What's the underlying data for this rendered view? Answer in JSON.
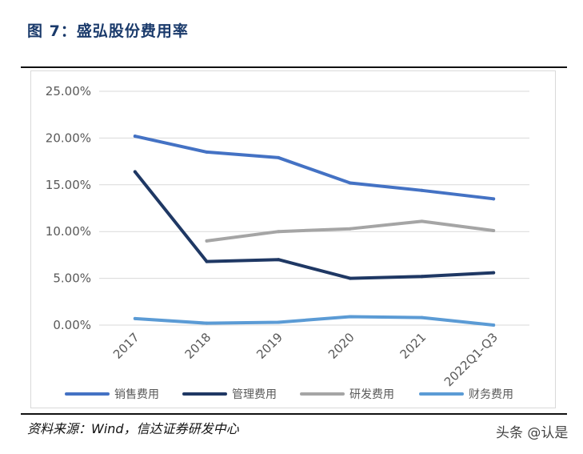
{
  "figure": {
    "title": "图 7：盛弘股份费用率",
    "source": "资料来源：Wind，信达证券研发中心",
    "watermark": "头条 @认是"
  },
  "chart_data": {
    "type": "line",
    "title": "",
    "xlabel": "",
    "ylabel": "",
    "categories": [
      "2017",
      "2018",
      "2019",
      "2020",
      "2021",
      "2022Q1-Q3"
    ],
    "ylim": [
      0,
      25
    ],
    "yticks": [
      0,
      5,
      10,
      15,
      20,
      25
    ],
    "ytick_labels": [
      "0.00%",
      "5.00%",
      "10.00%",
      "15.00%",
      "20.00%",
      "25.00%"
    ],
    "grid": true,
    "legend_position": "bottom",
    "series": [
      {
        "name": "销售费用",
        "color": "#4472c4",
        "values": [
          20.2,
          18.5,
          17.9,
          15.2,
          14.4,
          13.5
        ]
      },
      {
        "name": "管理费用",
        "color": "#1f3864",
        "values": [
          16.4,
          6.8,
          7.0,
          5.0,
          5.2,
          5.6
        ]
      },
      {
        "name": "研发费用",
        "color": "#a5a5a5",
        "values": [
          null,
          9.0,
          10.0,
          10.3,
          11.1,
          10.1
        ]
      },
      {
        "name": "财务费用",
        "color": "#5b9bd5",
        "values": [
          0.7,
          0.2,
          0.3,
          0.9,
          0.8,
          0.0
        ]
      }
    ]
  }
}
